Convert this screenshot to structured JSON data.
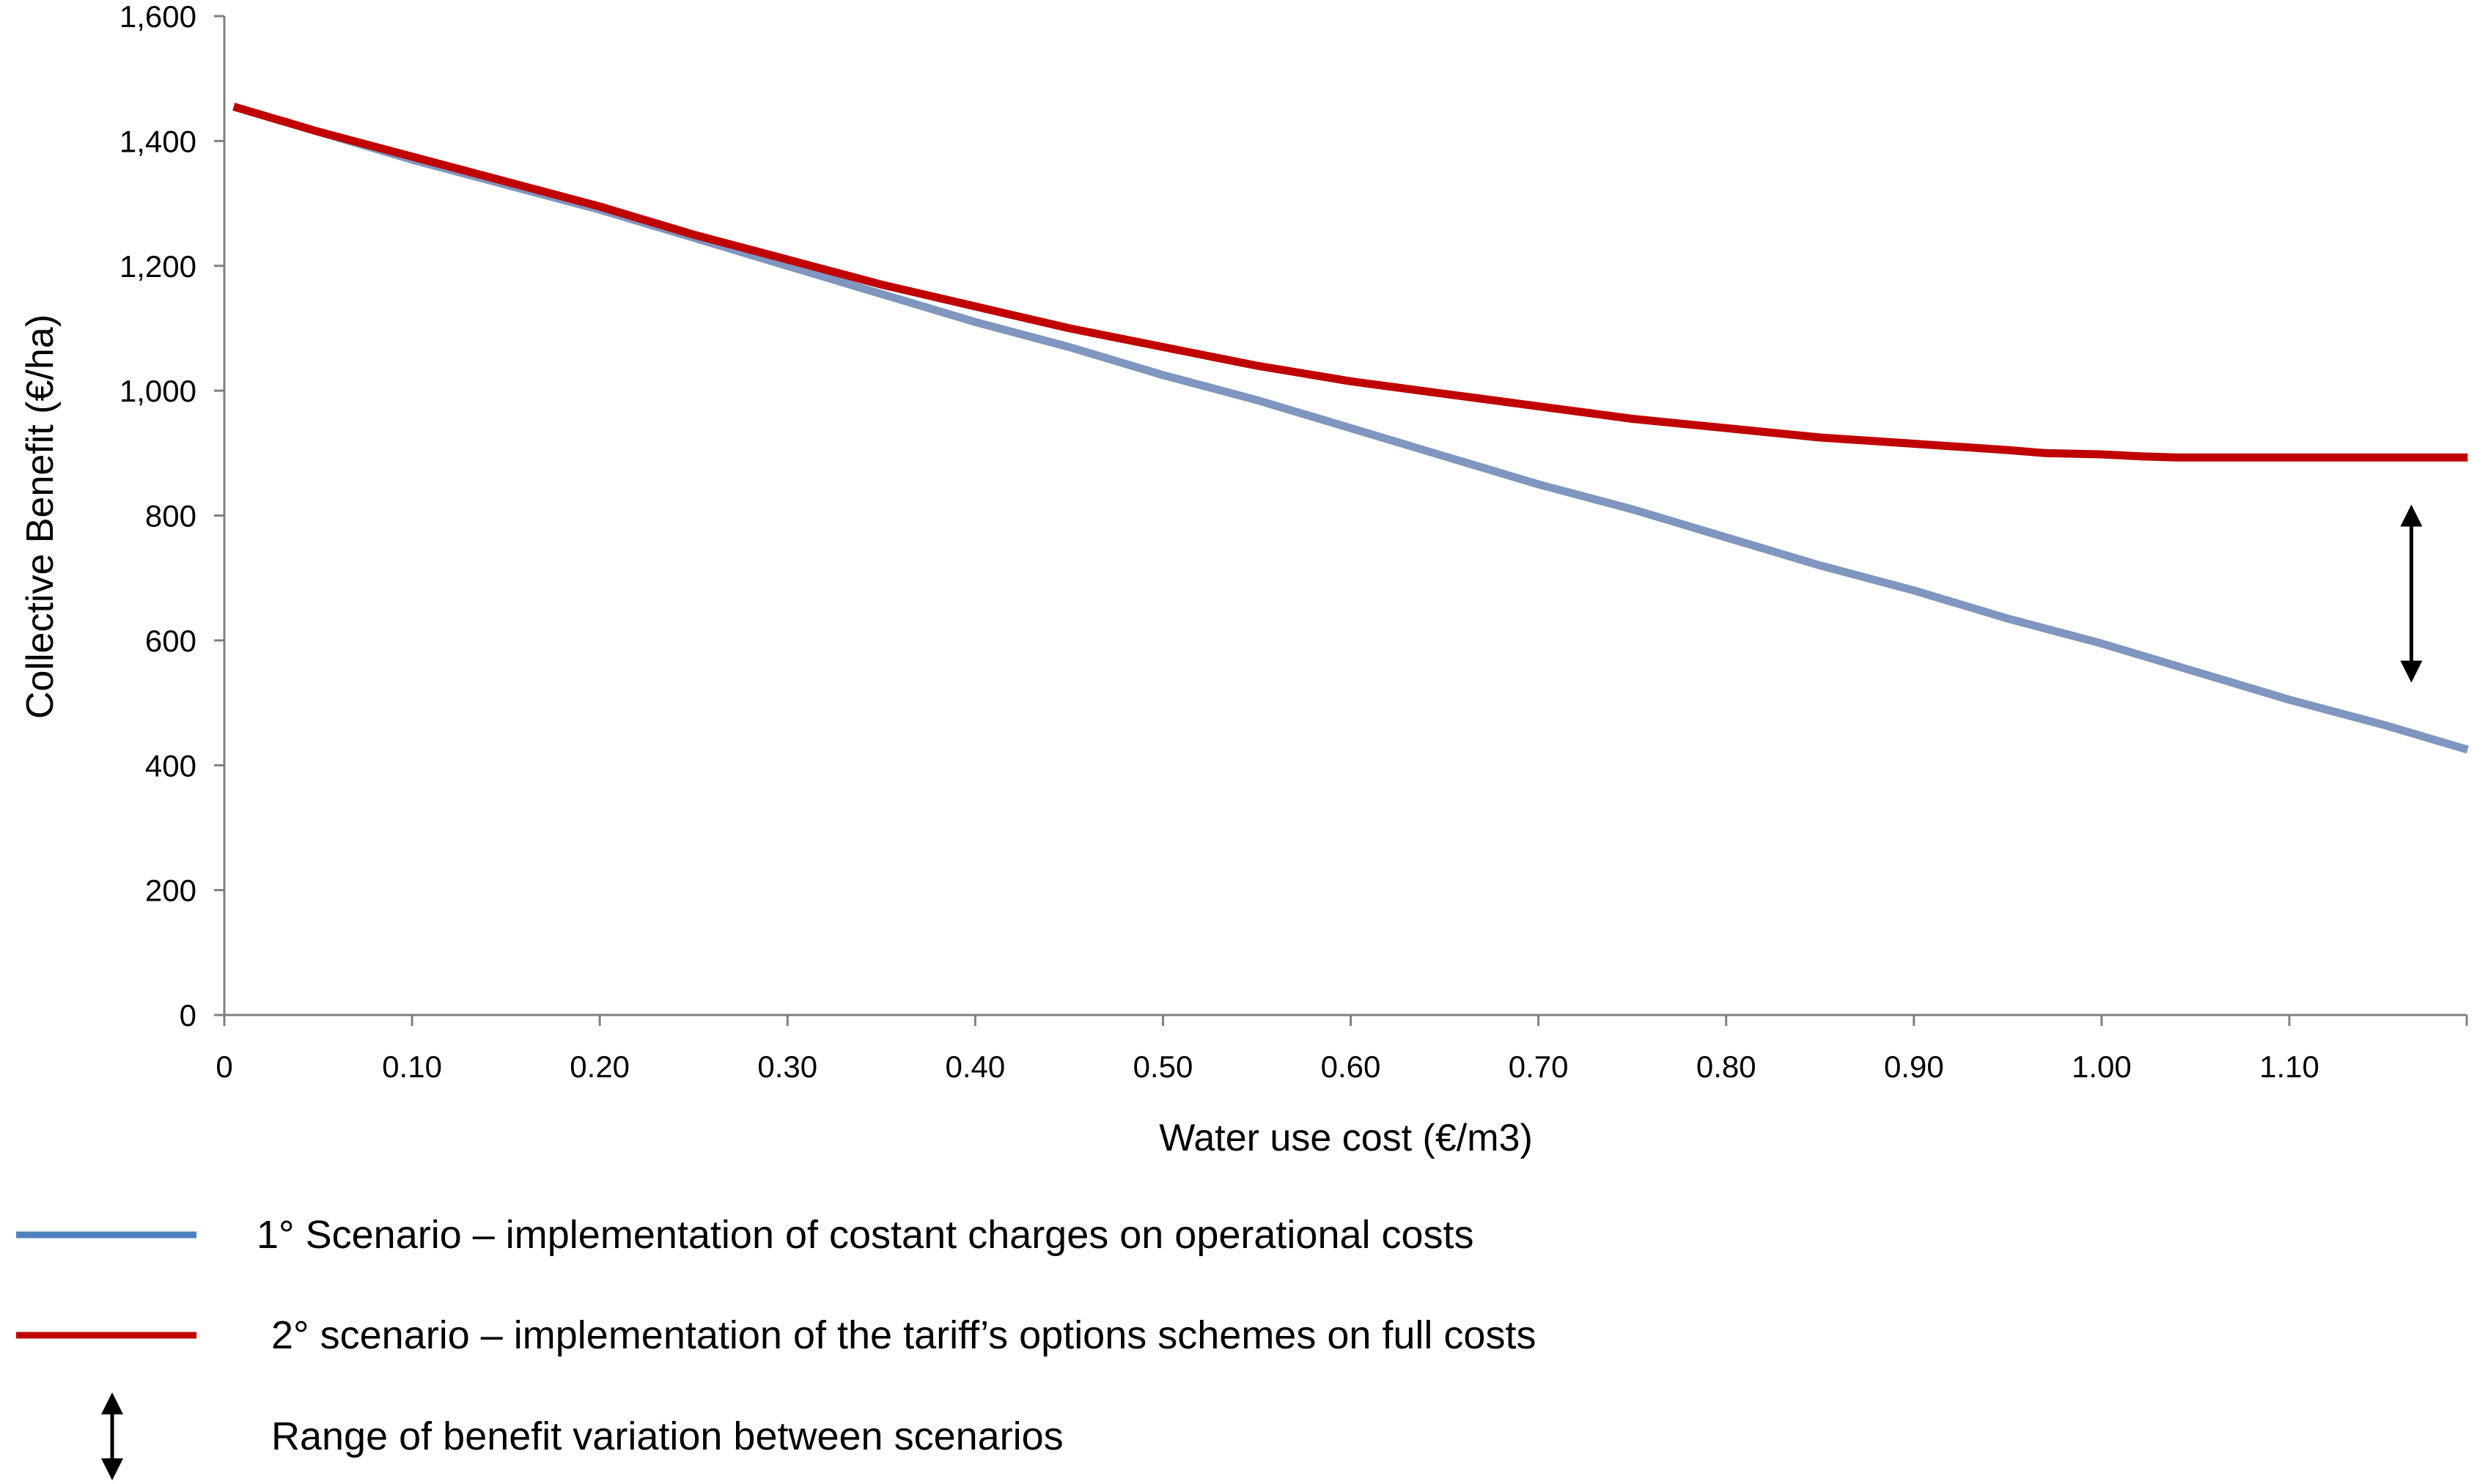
{
  "chart_data": {
    "type": "line",
    "title": "",
    "xlabel": "Water use cost (€/m3)",
    "ylabel": "Collective Benefit (€/ha)",
    "xlim": [
      0,
      1.2
    ],
    "ylim": [
      0,
      1600
    ],
    "x_ticks": [
      0,
      0.1,
      0.2,
      0.3,
      0.4,
      0.5,
      0.6,
      0.7,
      0.8,
      0.9,
      1.0,
      1.1
    ],
    "x_tick_labels": [
      "0",
      "0.10",
      "0.20",
      "0.30",
      "0.40",
      "0.50",
      "0.60",
      "0.70",
      "0.80",
      "0.90",
      "1.00",
      "1.10"
    ],
    "y_ticks": [
      0,
      200,
      400,
      600,
      800,
      1000,
      1200,
      1400,
      1600
    ],
    "y_tick_labels": [
      "0",
      "200",
      "400",
      "600",
      "800",
      "1,000",
      "1,200",
      "1,400",
      "1,600"
    ],
    "grid": false,
    "legend_position": "bottom",
    "series": [
      {
        "name": "1° Scenario – implementation of costant charges on operational costs",
        "color": "#7F96BE",
        "legend_color": "#4F81BD",
        "x": [
          0.005,
          0.05,
          0.1,
          0.15,
          0.2,
          0.25,
          0.3,
          0.35,
          0.4,
          0.45,
          0.5,
          0.55,
          0.6,
          0.65,
          0.7,
          0.75,
          0.8,
          0.85,
          0.9,
          0.95,
          1.0,
          1.05,
          1.1,
          1.15,
          1.195
        ],
        "y": [
          1455,
          1415,
          1370,
          1330,
          1290,
          1245,
          1200,
          1155,
          1110,
          1070,
          1025,
          985,
          940,
          895,
          850,
          810,
          765,
          720,
          680,
          635,
          595,
          550,
          505,
          465,
          425
        ]
      },
      {
        "name": "2° scenario – implementation of the tariff’s options schemes on full costs",
        "color": "#C00000",
        "legend_color": "#C00000",
        "x": [
          0.005,
          0.05,
          0.1,
          0.15,
          0.2,
          0.25,
          0.3,
          0.35,
          0.4,
          0.45,
          0.5,
          0.55,
          0.6,
          0.65,
          0.7,
          0.75,
          0.8,
          0.85,
          0.9,
          0.95,
          0.97,
          1.0,
          1.02,
          1.04,
          1.1,
          1.15,
          1.195
        ],
        "y": [
          1455,
          1415,
          1375,
          1335,
          1295,
          1250,
          1210,
          1170,
          1135,
          1100,
          1070,
          1040,
          1015,
          995,
          975,
          955,
          940,
          925,
          915,
          905,
          900,
          898,
          895,
          893,
          893,
          893,
          893
        ]
      }
    ],
    "annotations": [
      {
        "type": "double-arrow",
        "x": 1.165,
        "y_from": 800,
        "y_to": 550,
        "color": "#000000"
      }
    ],
    "legend": [
      {
        "kind": "line",
        "series": 0,
        "label": "1° Scenario – implementation of costant charges on operational costs"
      },
      {
        "kind": "line",
        "series": 1,
        "label": "2° scenario – implementation of the tariff’s options schemes on full costs"
      },
      {
        "kind": "double-arrow",
        "label": "Range of benefit variation between scenarios"
      }
    ]
  }
}
